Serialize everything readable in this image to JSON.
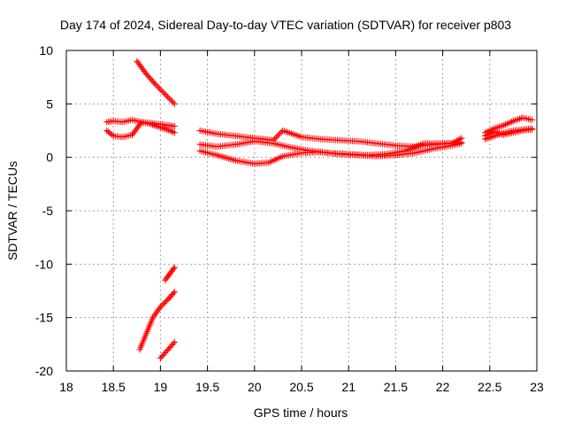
{
  "chart_data": {
    "type": "scatter",
    "title": "Day 174 of 2024, Sidereal Day-to-day VTEC variation (SDTVAR) for receiver p803",
    "xlabel": "GPS time / hours",
    "ylabel": "SDTVAR / TECUs",
    "xlim": [
      18,
      23
    ],
    "ylim": [
      -20,
      10
    ],
    "xticks": [
      "18",
      "18.5",
      "19",
      "19.5",
      "20",
      "20.5",
      "21",
      "21.5",
      "22",
      "22.5",
      "23"
    ],
    "yticks": [
      "10",
      "5",
      "0",
      "-5",
      "-10",
      "-15",
      "-20"
    ],
    "grid": true,
    "marker": "plus",
    "colors": {
      "series": "#ff0000",
      "grid": "#a0a0a0",
      "axis": "#000000"
    },
    "series": [
      {
        "x": [
          18.75,
          18.85,
          18.95,
          19.05,
          19.15
        ],
        "y": [
          9.0,
          7.8,
          6.8,
          5.9,
          5.0
        ]
      },
      {
        "x": [
          18.43,
          18.5,
          18.6,
          18.7,
          18.8,
          18.9,
          19.0,
          19.08,
          19.15
        ],
        "y": [
          3.3,
          3.4,
          3.3,
          3.5,
          3.3,
          3.2,
          3.1,
          3.0,
          2.9
        ]
      },
      {
        "x": [
          18.43,
          18.5,
          18.6,
          18.7,
          18.8,
          18.9,
          19.0,
          19.1,
          19.15
        ],
        "y": [
          2.5,
          2.0,
          1.9,
          2.1,
          3.3,
          3.1,
          2.8,
          2.5,
          2.3
        ]
      },
      {
        "x": [
          19.05,
          19.1,
          19.15
        ],
        "y": [
          -11.5,
          -10.9,
          -10.3
        ]
      },
      {
        "x": [
          18.78,
          18.85,
          18.92,
          19.0,
          19.08,
          19.15
        ],
        "y": [
          -18.0,
          -16.5,
          -15.0,
          -14.0,
          -13.3,
          -12.6
        ]
      },
      {
        "x": [
          19.0,
          19.05,
          19.1,
          19.15
        ],
        "y": [
          -18.8,
          -18.3,
          -17.8,
          -17.3
        ]
      },
      {
        "x": [
          19.42,
          19.6,
          19.8,
          20.0,
          20.2,
          20.3,
          20.5,
          20.7,
          20.9,
          21.1,
          21.3,
          21.5,
          21.7,
          21.9,
          22.1,
          22.2
        ],
        "y": [
          2.5,
          2.2,
          2.0,
          1.8,
          1.6,
          2.5,
          1.9,
          1.7,
          1.6,
          1.5,
          1.3,
          1.1,
          1.0,
          1.2,
          1.3,
          1.8
        ]
      },
      {
        "x": [
          19.42,
          19.6,
          19.8,
          20.0,
          20.2,
          20.4,
          20.6,
          20.8,
          21.0,
          21.2,
          21.4,
          21.6,
          21.8,
          22.0,
          22.2
        ],
        "y": [
          1.2,
          1.0,
          1.2,
          1.5,
          1.3,
          0.9,
          0.6,
          0.4,
          0.3,
          0.2,
          0.3,
          0.6,
          1.3,
          1.3,
          1.4
        ]
      },
      {
        "x": [
          19.42,
          19.6,
          19.8,
          20.0,
          20.15,
          20.3,
          20.5,
          20.7,
          20.9,
          21.1,
          21.3,
          21.5,
          21.7,
          21.9,
          22.1,
          22.2
        ],
        "y": [
          0.6,
          0.2,
          -0.3,
          -0.6,
          -0.5,
          0.1,
          0.4,
          0.5,
          0.3,
          0.2,
          0.1,
          0.2,
          0.4,
          0.8,
          1.1,
          1.3
        ]
      },
      {
        "x": [
          22.45,
          22.55,
          22.65,
          22.75,
          22.85,
          22.95
        ],
        "y": [
          2.3,
          2.7,
          3.0,
          3.4,
          3.7,
          3.5
        ]
      },
      {
        "x": [
          22.45,
          22.55,
          22.65,
          22.75,
          22.85,
          22.95
        ],
        "y": [
          1.7,
          2.0,
          2.3,
          2.5,
          2.6,
          2.7
        ]
      },
      {
        "x": [
          22.45,
          22.55,
          22.65,
          22.75,
          22.85,
          22.95
        ],
        "y": [
          2.0,
          2.4,
          2.1,
          2.3,
          2.5,
          2.6
        ]
      }
    ]
  }
}
